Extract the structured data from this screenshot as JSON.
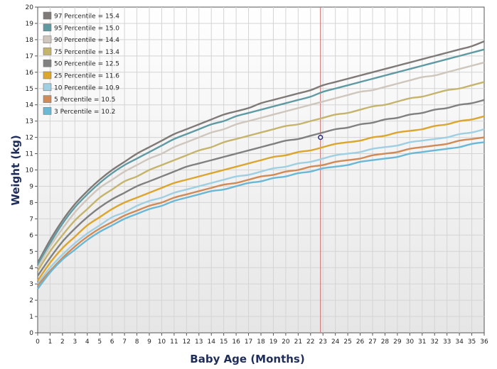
{
  "chart_data": {
    "type": "line",
    "xlabel": "Baby Age (Months)",
    "ylabel": "Weight (kg)",
    "xlim": [
      0,
      36
    ],
    "ylim": [
      0,
      20
    ],
    "grid": true,
    "legend_position": "top-left",
    "series": [
      {
        "name": "97 Percentile = 15.4",
        "color": "#7f7a78",
        "start": 4.3,
        "values": [
          4.3,
          5.7,
          6.9,
          7.9,
          8.7,
          9.4,
          10.0,
          10.5,
          11.0,
          11.4,
          11.8,
          12.2,
          12.5,
          12.8,
          13.1,
          13.4,
          13.6,
          13.8,
          14.1,
          14.3,
          14.5,
          14.7,
          14.9,
          15.2,
          15.4,
          15.6,
          15.8,
          16.0,
          16.2,
          16.4,
          16.6,
          16.8,
          17.0,
          17.2,
          17.4,
          17.6,
          17.9
        ]
      },
      {
        "name": "95 Percentile = 15.0",
        "color": "#5f9aa3",
        "start": 4.2,
        "values": [
          4.2,
          5.5,
          6.7,
          7.7,
          8.5,
          9.2,
          9.8,
          10.3,
          10.7,
          11.1,
          11.5,
          11.9,
          12.2,
          12.5,
          12.8,
          13.0,
          13.3,
          13.5,
          13.7,
          13.9,
          14.1,
          14.3,
          14.5,
          14.8,
          15.0,
          15.2,
          15.4,
          15.6,
          15.8,
          16.0,
          16.2,
          16.4,
          16.6,
          16.8,
          17.0,
          17.2,
          17.4
        ]
      },
      {
        "name": "90 Percentile = 14.4",
        "color": "#cfc6bd",
        "start": 4.0,
        "values": [
          4.0,
          5.3,
          6.4,
          7.4,
          8.2,
          8.9,
          9.4,
          9.9,
          10.3,
          10.7,
          11.0,
          11.4,
          11.7,
          12.0,
          12.3,
          12.5,
          12.8,
          13.0,
          13.2,
          13.4,
          13.6,
          13.8,
          14.0,
          14.2,
          14.4,
          14.6,
          14.8,
          14.9,
          15.1,
          15.3,
          15.5,
          15.7,
          15.8,
          16.0,
          16.2,
          16.4,
          16.6
        ]
      },
      {
        "name": "75 Percentile = 13.4",
        "color": "#c5b46b",
        "start": 3.8,
        "values": [
          3.8,
          5.0,
          6.0,
          6.9,
          7.6,
          8.3,
          8.8,
          9.3,
          9.6,
          10.0,
          10.3,
          10.6,
          10.9,
          11.2,
          11.4,
          11.7,
          11.9,
          12.1,
          12.3,
          12.5,
          12.7,
          12.8,
          13.0,
          13.2,
          13.4,
          13.5,
          13.7,
          13.9,
          14.0,
          14.2,
          14.4,
          14.5,
          14.7,
          14.9,
          15.0,
          15.2,
          15.4
        ]
      },
      {
        "name": "50 Percentile = 12.5",
        "color": "#808080",
        "start": 3.5,
        "values": [
          3.5,
          4.6,
          5.6,
          6.4,
          7.1,
          7.7,
          8.2,
          8.6,
          9.0,
          9.3,
          9.6,
          9.9,
          10.2,
          10.4,
          10.6,
          10.8,
          11.0,
          11.2,
          11.4,
          11.6,
          11.8,
          11.9,
          12.1,
          12.3,
          12.5,
          12.6,
          12.8,
          12.9,
          13.1,
          13.2,
          13.4,
          13.5,
          13.7,
          13.8,
          14.0,
          14.1,
          14.3
        ]
      },
      {
        "name": "25 Percentile = 11.6",
        "color": "#dca52d",
        "start": 3.2,
        "values": [
          3.2,
          4.3,
          5.2,
          5.9,
          6.6,
          7.1,
          7.6,
          8.0,
          8.3,
          8.6,
          8.9,
          9.2,
          9.4,
          9.6,
          9.8,
          10.0,
          10.2,
          10.4,
          10.6,
          10.8,
          10.9,
          11.1,
          11.2,
          11.4,
          11.6,
          11.7,
          11.8,
          12.0,
          12.1,
          12.3,
          12.4,
          12.5,
          12.7,
          12.8,
          13.0,
          13.1,
          13.3
        ]
      },
      {
        "name": "10 Percentile = 10.9",
        "color": "#9fcfe3",
        "start": 3.0,
        "values": [
          3.0,
          4.0,
          4.8,
          5.5,
          6.1,
          6.6,
          7.1,
          7.4,
          7.8,
          8.1,
          8.3,
          8.6,
          8.8,
          9.0,
          9.2,
          9.4,
          9.6,
          9.7,
          9.9,
          10.1,
          10.2,
          10.4,
          10.5,
          10.7,
          10.9,
          11.0,
          11.1,
          11.3,
          11.4,
          11.5,
          11.7,
          11.8,
          11.9,
          12.0,
          12.2,
          12.3,
          12.5
        ]
      },
      {
        "name": "5 Percentile = 10.5",
        "color": "#d18a56",
        "start": 2.9,
        "values": [
          2.9,
          3.8,
          4.6,
          5.3,
          5.9,
          6.4,
          6.8,
          7.2,
          7.5,
          7.8,
          8.0,
          8.3,
          8.5,
          8.7,
          8.9,
          9.1,
          9.2,
          9.4,
          9.6,
          9.7,
          9.9,
          10.0,
          10.2,
          10.3,
          10.5,
          10.6,
          10.7,
          10.9,
          11.0,
          11.1,
          11.3,
          11.4,
          11.5,
          11.6,
          11.8,
          11.9,
          12.0
        ]
      },
      {
        "name": "3 Percentile = 10.2",
        "color": "#6bb8d6",
        "start": 2.7,
        "values": [
          2.7,
          3.7,
          4.5,
          5.1,
          5.7,
          6.2,
          6.6,
          7.0,
          7.3,
          7.6,
          7.8,
          8.1,
          8.3,
          8.5,
          8.7,
          8.8,
          9.0,
          9.2,
          9.3,
          9.5,
          9.6,
          9.8,
          9.9,
          10.1,
          10.2,
          10.3,
          10.5,
          10.6,
          10.7,
          10.8,
          11.0,
          11.1,
          11.2,
          11.3,
          11.4,
          11.6,
          11.7
        ]
      }
    ],
    "marker_line": {
      "x": 22.8,
      "color": "#d07a7a"
    },
    "point": {
      "x": 22.8,
      "y": 12.0,
      "color": "#2b2f86"
    }
  }
}
